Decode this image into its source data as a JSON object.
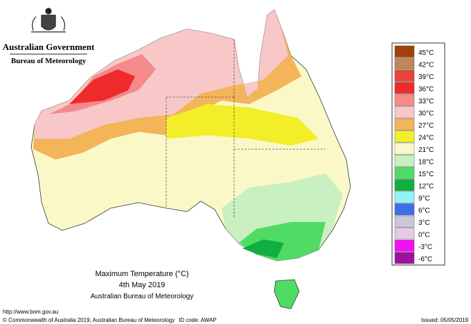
{
  "header": {
    "title": "Australian Government",
    "subtitle": "Bureau of Meteorology"
  },
  "map": {
    "title": "Maximum Temperature (°C)",
    "date": "4th May 2019",
    "source": "Australian Bureau of Meteorology"
  },
  "legend": [
    {
      "label": "45°C",
      "color": "#a33f0c"
    },
    {
      "label": "42°C",
      "color": "#c0875a"
    },
    {
      "label": "39°C",
      "color": "#e8443c"
    },
    {
      "label": "36°C",
      "color": "#ee2a2a"
    },
    {
      "label": "33°C",
      "color": "#f48a8a"
    },
    {
      "label": "30°C",
      "color": "#f8c8c8"
    },
    {
      "label": "27°C",
      "color": "#f3b45a"
    },
    {
      "label": "24°C",
      "color": "#f2ee2a"
    },
    {
      "label": "21°C",
      "color": "#fbf8c8"
    },
    {
      "label": "18°C",
      "color": "#c8f0c0"
    },
    {
      "label": "15°C",
      "color": "#50dc64"
    },
    {
      "label": "12°C",
      "color": "#10b040"
    },
    {
      "label": "9°C",
      "color": "#90f4f8"
    },
    {
      "label": "6°C",
      "color": "#4070e8"
    },
    {
      "label": "3°C",
      "color": "#c8c8d8"
    },
    {
      "label": "0°C",
      "color": "#e8c8e8"
    },
    {
      "label": "-3°C",
      "color": "#f010f0"
    },
    {
      "label": "-6°C",
      "color": "#a010a0"
    }
  ],
  "footer": {
    "url": "http://www.bom.gov.au",
    "copyright": "© Commonwealth of Australia 2019, Australian Bureau of Meteorology",
    "id_code": "ID code: AWAP",
    "issued": "Issued: 05/05/2019"
  }
}
